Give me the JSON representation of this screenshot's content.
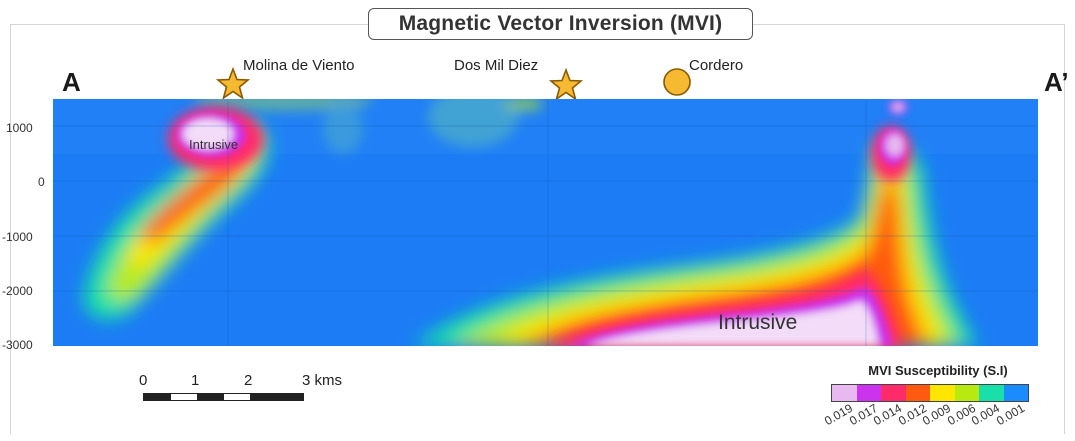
{
  "title": "Magnetic Vector Inversion (MVI)",
  "section": {
    "start_label": "A",
    "end_label": "A’",
    "sites": [
      {
        "name": "Molina de Viento",
        "marker": "star-icon"
      },
      {
        "name": "Dos Mil Diez",
        "marker": "star-icon"
      },
      {
        "name": "Cordero",
        "marker": "circle-icon"
      }
    ],
    "elevation_ticks": [
      "1000",
      "0",
      "-1000",
      "-2000",
      "-3000"
    ],
    "annotations": [
      "Intrusive",
      "Intrusive"
    ]
  },
  "scale_bar": {
    "ticks": [
      "0",
      "1",
      "2"
    ],
    "end_label": "3 kms"
  },
  "legend": {
    "title": "MVI Susceptibility (S.I)",
    "values": [
      "0.019",
      "0.017",
      "0.014",
      "0.012",
      "0.009",
      "0.006",
      "0.004",
      "0.001"
    ],
    "colors": [
      "#e8b8f0",
      "#cc33ee",
      "#ff2a6a",
      "#ff5a10",
      "#ffe600",
      "#b8ea12",
      "#18e0a8",
      "#1a8cff"
    ]
  },
  "colors": {
    "background_field": "#1c7cf5",
    "marker_fill": "#f5b932",
    "marker_stroke": "#8a5a00"
  }
}
